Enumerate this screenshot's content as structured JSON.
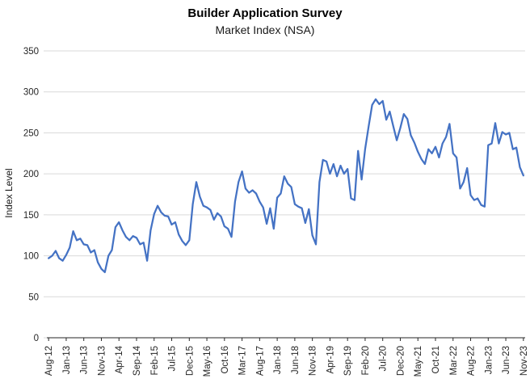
{
  "title": "Builder Application Survey",
  "subtitle": "Market Index (NSA)",
  "chart_data": {
    "type": "line",
    "title": "Builder Application Survey",
    "subtitle": "Market Index (NSA)",
    "xlabel": "",
    "ylabel": "Index Level",
    "ylim": [
      0,
      350
    ],
    "yticks": [
      0,
      50,
      100,
      150,
      200,
      250,
      300,
      350
    ],
    "grid": true,
    "legend": false,
    "line_color": "#4472C4",
    "gridline_color": "#d9d9d9",
    "axis_color": "#262626",
    "tick_label_color": "#262626",
    "xtick_every": 5,
    "xtick_labels": [
      "Aug-12",
      "Jan-13",
      "Jun-13",
      "Nov-13",
      "Apr-14",
      "Sep-14",
      "Feb-15",
      "Jul-15",
      "Dec-15",
      "May-16",
      "Oct-16",
      "Mar-17",
      "Aug-17",
      "Jan-18",
      "Jun-18",
      "Nov-18",
      "Apr-19",
      "Sep-19",
      "Feb-20",
      "Jul-20",
      "Dec-20",
      "May-21",
      "Oct-21",
      "Mar-22",
      "Aug-22",
      "Jan-23",
      "Jun-23",
      "Nov-23"
    ],
    "x": [
      "Aug-12",
      "Sep-12",
      "Oct-12",
      "Nov-12",
      "Dec-12",
      "Jan-13",
      "Feb-13",
      "Mar-13",
      "Apr-13",
      "May-13",
      "Jun-13",
      "Jul-13",
      "Aug-13",
      "Sep-13",
      "Oct-13",
      "Nov-13",
      "Dec-13",
      "Jan-14",
      "Feb-14",
      "Mar-14",
      "Apr-14",
      "May-14",
      "Jun-14",
      "Jul-14",
      "Aug-14",
      "Sep-14",
      "Oct-14",
      "Nov-14",
      "Dec-14",
      "Jan-15",
      "Feb-15",
      "Mar-15",
      "Apr-15",
      "May-15",
      "Jun-15",
      "Jul-15",
      "Aug-15",
      "Sep-15",
      "Oct-15",
      "Nov-15",
      "Dec-15",
      "Jan-16",
      "Feb-16",
      "Mar-16",
      "Apr-16",
      "May-16",
      "Jun-16",
      "Jul-16",
      "Aug-16",
      "Sep-16",
      "Oct-16",
      "Nov-16",
      "Dec-16",
      "Jan-17",
      "Feb-17",
      "Mar-17",
      "Apr-17",
      "May-17",
      "Jun-17",
      "Jul-17",
      "Aug-17",
      "Sep-17",
      "Oct-17",
      "Nov-17",
      "Dec-17",
      "Jan-18",
      "Feb-18",
      "Mar-18",
      "Apr-18",
      "May-18",
      "Jun-18",
      "Jul-18",
      "Aug-18",
      "Sep-18",
      "Oct-18",
      "Nov-18",
      "Dec-18",
      "Jan-19",
      "Feb-19",
      "Mar-19",
      "Apr-19",
      "May-19",
      "Jun-19",
      "Jul-19",
      "Aug-19",
      "Sep-19",
      "Oct-19",
      "Nov-19",
      "Dec-19",
      "Jan-20",
      "Feb-20",
      "Mar-20",
      "Apr-20",
      "May-20",
      "Jun-20",
      "Jul-20",
      "Aug-20",
      "Sep-20",
      "Oct-20",
      "Nov-20",
      "Dec-20",
      "Jan-21",
      "Feb-21",
      "Mar-21",
      "Apr-21",
      "May-21",
      "Jun-21",
      "Jul-21",
      "Aug-21",
      "Sep-21",
      "Oct-21",
      "Nov-21",
      "Dec-21",
      "Jan-22",
      "Feb-22",
      "Mar-22",
      "Apr-22",
      "May-22",
      "Jun-22",
      "Jul-22",
      "Aug-22",
      "Sep-22",
      "Oct-22",
      "Nov-22",
      "Dec-22",
      "Jan-23",
      "Feb-23",
      "Mar-23",
      "Apr-23",
      "May-23",
      "Jun-23",
      "Jul-23",
      "Aug-23",
      "Sep-23",
      "Oct-23",
      "Nov-23"
    ],
    "values": [
      97,
      100,
      106,
      97,
      94,
      101,
      110,
      130,
      119,
      121,
      114,
      113,
      104,
      107,
      92,
      84,
      80,
      100,
      107,
      135,
      141,
      131,
      123,
      119,
      124,
      122,
      114,
      116,
      94,
      131,
      151,
      161,
      153,
      149,
      148,
      138,
      141,
      126,
      118,
      113,
      119,
      163,
      190,
      172,
      161,
      159,
      156,
      144,
      152,
      148,
      136,
      133,
      123,
      166,
      190,
      203,
      182,
      177,
      180,
      176,
      166,
      159,
      139,
      158,
      133,
      171,
      176,
      197,
      188,
      184,
      163,
      160,
      158,
      140,
      157,
      125,
      114,
      190,
      217,
      215,
      200,
      212,
      197,
      210,
      200,
      206,
      170,
      168,
      228,
      193,
      230,
      258,
      284,
      291,
      285,
      289,
      266,
      276,
      258,
      241,
      256,
      273,
      267,
      247,
      238,
      227,
      218,
      212,
      230,
      225,
      233,
      220,
      237,
      245,
      261,
      225,
      220,
      182,
      190,
      207,
      174,
      168,
      170,
      162,
      160,
      235,
      237,
      262,
      237,
      251,
      248,
      250,
      230,
      232,
      208,
      198
    ]
  }
}
